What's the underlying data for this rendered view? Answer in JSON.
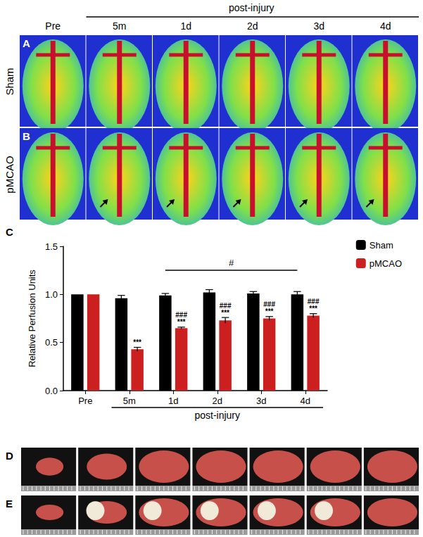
{
  "figure": {
    "header": "post-injury",
    "columns": [
      "Pre",
      "5m",
      "1d",
      "2d",
      "3d",
      "4d"
    ],
    "rows": [
      {
        "letter": "A",
        "label": "Sham"
      },
      {
        "letter": "B",
        "label": "pMCAO"
      }
    ],
    "photo_rows": [
      "D",
      "E"
    ]
  },
  "chart_data": {
    "type": "bar",
    "letter": "C",
    "categories": [
      "Pre",
      "5m",
      "1d",
      "2d",
      "3d",
      "4d"
    ],
    "x_group": {
      "label": "post-injury",
      "from": "5m",
      "to": "4d"
    },
    "y_label": "Relative Perfusion Units",
    "ylim": [
      0,
      1.5
    ],
    "yticks": [
      {
        "value": 0,
        "label": "0.0"
      },
      {
        "value": 0.5,
        "label": "0.5"
      },
      {
        "value": 1,
        "label": "1.0"
      },
      {
        "value": 1.5,
        "label": "1.5"
      }
    ],
    "legend": "top-right",
    "series": [
      {
        "name": "Sham",
        "color": "#000000",
        "values": [
          1.0,
          0.96,
          0.99,
          1.02,
          1.01,
          1.0
        ],
        "errors": [
          0,
          0.03,
          0.02,
          0.03,
          0.02,
          0.03
        ]
      },
      {
        "name": "pMCAO",
        "color": "#cc1f1f",
        "values": [
          1.0,
          0.43,
          0.65,
          0.73,
          0.75,
          0.78
        ],
        "errors": [
          0,
          0.02,
          0.01,
          0.03,
          0.02,
          0.02
        ],
        "annotations": [
          null,
          "***",
          "***",
          "***",
          "***",
          "***"
        ],
        "annotations_upper": [
          null,
          null,
          "###",
          "###",
          "###",
          "###"
        ]
      }
    ],
    "brackets": [
      {
        "text": "#",
        "from": "1d",
        "to": "4d",
        "y": 1.25
      }
    ]
  }
}
